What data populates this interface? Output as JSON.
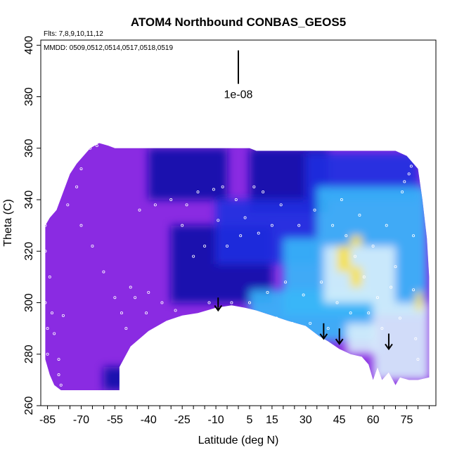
{
  "chart_data": {
    "type": "heatmap",
    "title": "ATOM4 Northbound CONBAS_GEOS5",
    "annotations": {
      "flights": "Flts: 7,8,9,10,11,12",
      "dates": "MMDD: 0509,0512,0514,0517,0518,0519",
      "scale_bar_label": "1e-08"
    },
    "xlabel": "Latitude (deg N)",
    "ylabel": "Theta (C)",
    "xlim": [
      -88,
      88
    ],
    "ylim": [
      260,
      402
    ],
    "x_ticks": [
      -85,
      -70,
      -55,
      -40,
      -25,
      -10,
      5,
      15,
      30,
      45,
      60,
      75
    ],
    "y_ticks": [
      260,
      280,
      300,
      320,
      340,
      360,
      380,
      400
    ],
    "grid": false,
    "colors": {
      "purple": "#8a2be2",
      "dark_blue": "#0a0aa8",
      "blue": "#2030e0",
      "sky": "#38b8f8",
      "light": "#d8f0fc",
      "yellow": "#f8e040"
    },
    "data_region_top": [
      [
        -86,
        330
      ],
      [
        -84,
        333
      ],
      [
        -81,
        336
      ],
      [
        -78,
        343
      ],
      [
        -75,
        350
      ],
      [
        -72,
        354
      ],
      [
        -69,
        357
      ],
      [
        -66,
        360
      ],
      [
        -62,
        362
      ],
      [
        -58,
        361
      ],
      [
        -55,
        360
      ],
      [
        -40,
        360
      ],
      [
        -20,
        360
      ],
      [
        0,
        360
      ],
      [
        5,
        360
      ],
      [
        8,
        359
      ],
      [
        20,
        359
      ],
      [
        40,
        359
      ],
      [
        60,
        359
      ],
      [
        70,
        359
      ],
      [
        75,
        357
      ],
      [
        80,
        352
      ],
      [
        82,
        340
      ],
      [
        84,
        325
      ],
      [
        85,
        310
      ],
      [
        85,
        300
      ]
    ],
    "data_region_bottom": [
      [
        -86,
        278
      ],
      [
        -84,
        272
      ],
      [
        -82,
        268
      ],
      [
        -79,
        266
      ],
      [
        -70,
        266
      ],
      [
        -60,
        266
      ],
      [
        -53,
        266
      ],
      [
        -53,
        275
      ],
      [
        -48,
        283
      ],
      [
        -40,
        289
      ],
      [
        -32,
        293
      ],
      [
        -25,
        295
      ],
      [
        -18,
        296
      ],
      [
        -10,
        298
      ],
      [
        -3,
        299
      ],
      [
        3,
        298
      ],
      [
        8,
        297
      ],
      [
        15,
        295
      ],
      [
        22,
        293
      ],
      [
        30,
        291
      ],
      [
        36,
        287
      ],
      [
        40,
        285
      ],
      [
        45,
        282
      ],
      [
        50,
        280
      ],
      [
        55,
        279
      ],
      [
        58,
        276
      ],
      [
        60,
        270
      ],
      [
        62,
        275
      ],
      [
        64,
        270
      ],
      [
        67,
        273
      ],
      [
        70,
        268
      ],
      [
        72,
        271
      ],
      [
        76,
        270
      ],
      [
        80,
        270
      ],
      [
        85,
        271
      ]
    ],
    "color_patches": [
      {
        "x": [
          -60,
          -40
        ],
        "y": [
          266,
          275
        ],
        "color": "dark_blue"
      },
      {
        "x": [
          -40,
          -5
        ],
        "y": [
          340,
          360
        ],
        "color": "dark_blue"
      },
      {
        "x": [
          -30,
          15
        ],
        "y": [
          300,
          330
        ],
        "color": "dark_blue"
      },
      {
        "x": [
          5,
          40
        ],
        "y": [
          335,
          360
        ],
        "color": "dark_blue"
      },
      {
        "x": [
          -10,
          35
        ],
        "y": [
          315,
          340
        ],
        "color": "blue"
      },
      {
        "x": [
          30,
          80
        ],
        "y": [
          340,
          358
        ],
        "color": "blue"
      },
      {
        "x": [
          35,
          84
        ],
        "y": [
          325,
          345
        ],
        "color": "sky"
      },
      {
        "x": [
          20,
          84
        ],
        "y": [
          295,
          325
        ],
        "color": "sky"
      },
      {
        "x": [
          5,
          60
        ],
        "y": [
          285,
          305
        ],
        "color": "sky"
      },
      {
        "x": [
          38,
          70
        ],
        "y": [
          300,
          322
        ],
        "color": "light"
      },
      {
        "x": [
          60,
          85
        ],
        "y": [
          270,
          300
        ],
        "color": "light"
      },
      {
        "x": [
          48,
          62
        ],
        "y": [
          280,
          292
        ],
        "color": "light"
      },
      {
        "x": [
          44,
          50
        ],
        "y": [
          312,
          322
        ],
        "color": "yellow"
      },
      {
        "x": [
          50,
          55
        ],
        "y": [
          306,
          314
        ],
        "color": "yellow"
      },
      {
        "x": [
          50,
          55
        ],
        "y": [
          322,
          326
        ],
        "color": "yellow"
      },
      {
        "x": [
          79,
          82
        ],
        "y": [
          297,
          304
        ],
        "color": "yellow"
      }
    ],
    "arrows": [
      {
        "lat": -9,
        "theta_top": 302,
        "theta_bottom": 297
      },
      {
        "lat": 38,
        "theta_top": 292,
        "theta_bottom": 286
      },
      {
        "lat": 45,
        "theta_top": 290,
        "theta_bottom": 284
      },
      {
        "lat": 67,
        "theta_top": 288,
        "theta_bottom": 282
      }
    ],
    "scale_bar": {
      "lat": 0,
      "theta_top": 398,
      "theta_bottom": 385
    },
    "sample_points": [
      [
        -86,
        330
      ],
      [
        -86,
        320
      ],
      [
        -86,
        300
      ],
      [
        -85,
        290
      ],
      [
        -85,
        280
      ],
      [
        -86,
        275
      ],
      [
        -84,
        310
      ],
      [
        -83,
        296
      ],
      [
        -82,
        288
      ],
      [
        -80,
        278
      ],
      [
        -80,
        272
      ],
      [
        -79,
        268
      ],
      [
        -78,
        295
      ],
      [
        -76,
        338
      ],
      [
        -72,
        345
      ],
      [
        -70,
        352
      ],
      [
        -66,
        360
      ],
      [
        -63,
        361
      ],
      [
        -70,
        330
      ],
      [
        -65,
        322
      ],
      [
        -60,
        312
      ],
      [
        -55,
        302
      ],
      [
        -52,
        296
      ],
      [
        -50,
        290
      ],
      [
        -48,
        306
      ],
      [
        -46,
        302
      ],
      [
        -44,
        336
      ],
      [
        -41,
        296
      ],
      [
        -40,
        304
      ],
      [
        -37,
        338
      ],
      [
        -34,
        300
      ],
      [
        -32,
        292
      ],
      [
        -30,
        340
      ],
      [
        -28,
        297
      ],
      [
        -25,
        330
      ],
      [
        -23,
        338
      ],
      [
        -20,
        318
      ],
      [
        -18,
        343
      ],
      [
        -15,
        322
      ],
      [
        -13,
        300
      ],
      [
        -11,
        344
      ],
      [
        -9,
        332
      ],
      [
        -7,
        345
      ],
      [
        -5,
        322
      ],
      [
        -3,
        300
      ],
      [
        -1,
        340
      ],
      [
        1,
        326
      ],
      [
        3,
        333
      ],
      [
        5,
        300
      ],
      [
        7,
        345
      ],
      [
        9,
        327
      ],
      [
        11,
        343
      ],
      [
        13,
        304
      ],
      [
        15,
        330
      ],
      [
        17,
        294
      ],
      [
        19,
        338
      ],
      [
        21,
        308
      ],
      [
        24,
        292
      ],
      [
        27,
        330
      ],
      [
        29,
        303
      ],
      [
        32,
        292
      ],
      [
        34,
        336
      ],
      [
        37,
        308
      ],
      [
        40,
        290
      ],
      [
        42,
        330
      ],
      [
        44,
        300
      ],
      [
        46,
        340
      ],
      [
        48,
        326
      ],
      [
        50,
        296
      ],
      [
        52,
        318
      ],
      [
        54,
        334
      ],
      [
        56,
        310
      ],
      [
        58,
        296
      ],
      [
        60,
        322
      ],
      [
        62,
        302
      ],
      [
        64,
        290
      ],
      [
        66,
        330
      ],
      [
        68,
        306
      ],
      [
        70,
        314
      ],
      [
        72,
        294
      ],
      [
        73,
        343
      ],
      [
        74,
        347
      ],
      [
        76,
        350
      ],
      [
        77,
        353
      ],
      [
        78,
        326
      ],
      [
        78,
        305
      ],
      [
        79,
        286
      ],
      [
        80,
        278
      ]
    ]
  }
}
